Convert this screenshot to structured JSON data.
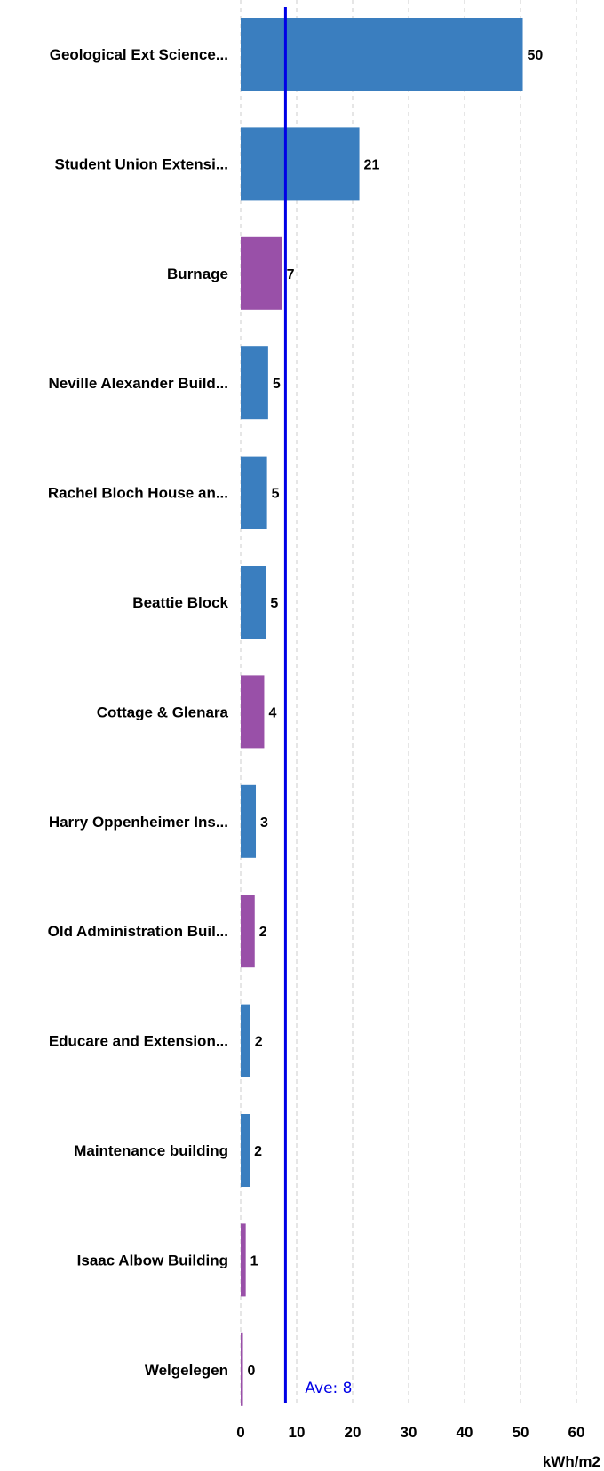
{
  "colors": {
    "blue": "#3a7ebf",
    "purple": "#9950a8",
    "average_line": "#0000e6",
    "grid": "#cccccc"
  },
  "chart_data": {
    "type": "bar",
    "orientation": "horizontal",
    "categories": [
      "Geological Ext Science...",
      "Student Union Extensi...",
      "Burnage",
      "Neville Alexander Build...",
      "Rachel Bloch House an...",
      "Beattie Block",
      "Cottage & Glenara",
      "Harry Oppenheimer Ins...",
      "Old Administration Buil...",
      "Educare and Extension...",
      "Maintenance building",
      "Isaac Albow Building",
      "Welgelegen"
    ],
    "values": [
      50.4,
      21.2,
      7.4,
      4.9,
      4.7,
      4.5,
      4.2,
      2.7,
      2.5,
      1.7,
      1.6,
      0.9,
      0.4
    ],
    "value_labels": [
      "50",
      "21",
      "7",
      "5",
      "5",
      "5",
      "4",
      "3",
      "2",
      "2",
      "2",
      "1",
      "0"
    ],
    "bar_colors": [
      "blue",
      "blue",
      "purple",
      "blue",
      "blue",
      "blue",
      "purple",
      "blue",
      "purple",
      "blue",
      "blue",
      "purple",
      "purple"
    ],
    "xlim": [
      0,
      60
    ],
    "xticks": [
      0,
      10,
      20,
      30,
      40,
      50,
      60
    ],
    "xlabel": "kWh/m2",
    "grid": "vertical dashed",
    "average": {
      "value": 8,
      "label": "Ave: 8"
    }
  }
}
